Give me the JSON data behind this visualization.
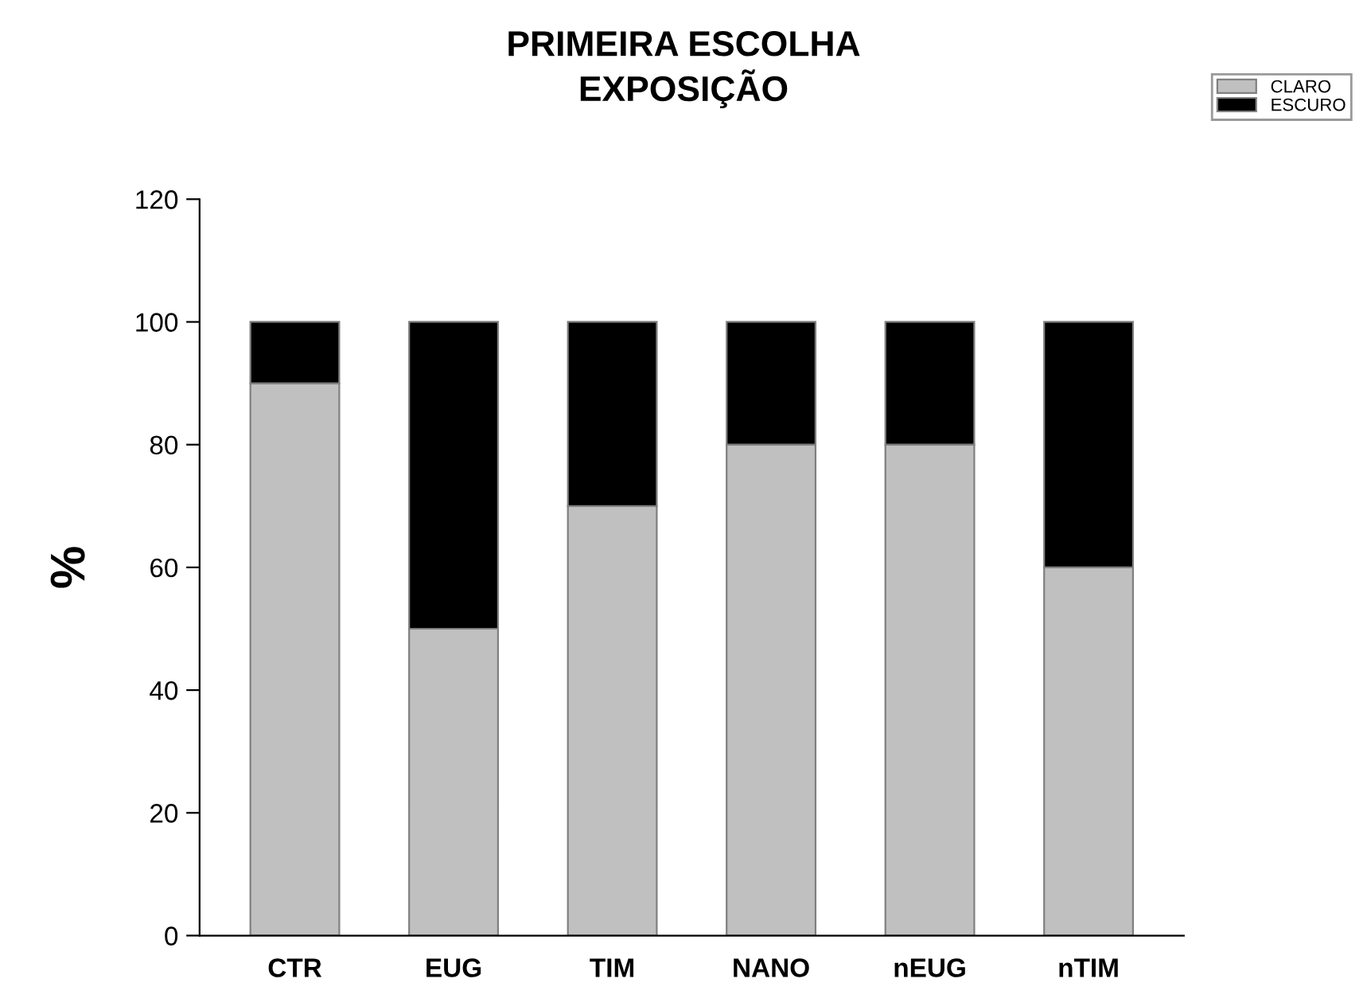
{
  "chart_data": {
    "type": "bar",
    "title": "PRIMEIRA ESCOLHA\nEXPOSIÇÃO",
    "ylabel": "%",
    "categories": [
      "CTR",
      "EUG",
      "TIM",
      "NANO",
      "nEUG",
      "nTIM"
    ],
    "series": [
      {
        "name": "CLARO",
        "color": "#c0c0c0",
        "values": [
          90,
          50,
          70,
          80,
          80,
          60
        ]
      },
      {
        "name": "ESCURO",
        "color": "#000000",
        "values": [
          10,
          50,
          30,
          20,
          20,
          40
        ]
      }
    ],
    "stacked": true,
    "ylim": [
      0,
      120
    ],
    "yticks": [
      0,
      20,
      40,
      60,
      80,
      100,
      120
    ],
    "grid": false,
    "legend": "top right"
  }
}
